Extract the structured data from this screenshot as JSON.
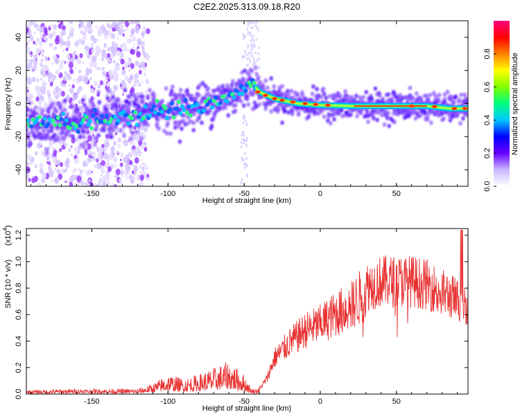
{
  "title": "C2E2.2025.313.09.18.R20",
  "chart_data": [
    {
      "type": "heatmap",
      "title": "C2E2.2025.313.09.18.R20",
      "xlabel": "Height of straight line (km)",
      "ylabel": "Frequency (Hz)",
      "xlim": [
        -193,
        97
      ],
      "ylim": [
        -50,
        50
      ],
      "xticks": [
        -150,
        -100,
        -50,
        0,
        50
      ],
      "yticks": [
        -40,
        -20,
        0,
        20,
        40
      ],
      "xtick_labels": [
        "-150",
        "-100",
        "-50",
        "0",
        "50"
      ],
      "ytick_labels": [
        "-40",
        "-20",
        "0",
        "20",
        "40"
      ],
      "ridge": {
        "x": [
          -190,
          -170,
          -150,
          -130,
          -110,
          -90,
          -70,
          -55,
          -45,
          -40,
          -30,
          -15,
          0,
          20,
          50,
          70,
          85,
          95
        ],
        "y": [
          -13,
          -11,
          -11,
          -8,
          -4,
          -3,
          1,
          6,
          13,
          7,
          3,
          0,
          -1,
          -1.5,
          -1.5,
          -1.5,
          -3,
          -3
        ]
      },
      "colorbar": {
        "label": "Normalized spectral amplitude",
        "range": [
          0,
          1
        ],
        "ticks": [
          "0.0",
          "0.2",
          "0.4",
          "0.6",
          "0.8"
        ],
        "tick_values": [
          0,
          0.2,
          0.4,
          0.6,
          0.8
        ],
        "colors": [
          "#ffffff",
          "#c8b8ff",
          "#6a00ff",
          "#0000ff",
          "#00c8ff",
          "#00ff80",
          "#80ff00",
          "#ffff00",
          "#ff8000",
          "#ff0000",
          "#ff0080"
        ]
      }
    },
    {
      "type": "line",
      "xlabel": "Height of straight line (km)",
      "ylabel": "SNR (10 * v/v)",
      "scale_label": "(x10",
      "scale_exponent": "4",
      "scale_suffix": ")",
      "xlim": [
        -193,
        97
      ],
      "ylim": [
        0,
        1.25
      ],
      "xticks": [
        -150,
        -100,
        -50,
        0,
        50
      ],
      "yticks": [
        0,
        0.2,
        0.4,
        0.6,
        0.8,
        1.0,
        1.2
      ],
      "xtick_labels": [
        "-150",
        "-100",
        "-50",
        "0",
        "50"
      ],
      "ytick_labels": [
        "0.0",
        "0.2",
        "0.4",
        "0.6",
        "0.8",
        "1.0",
        "1.2"
      ],
      "color": "#e83030",
      "envelope": {
        "x": [
          -193,
          -160,
          -120,
          -110,
          -100,
          -90,
          -80,
          -70,
          -60,
          -55,
          -50,
          -45,
          -40,
          -35,
          -30,
          -20,
          -10,
          0,
          10,
          20,
          30,
          40,
          50,
          60,
          70,
          80,
          90,
          97
        ],
        "y": [
          0.03,
          0.04,
          0.04,
          0.08,
          0.15,
          0.12,
          0.15,
          0.2,
          0.25,
          0.2,
          0.15,
          0.04,
          0.05,
          0.15,
          0.35,
          0.5,
          0.62,
          0.68,
          0.78,
          0.85,
          1.0,
          1.05,
          1.05,
          1.05,
          1.02,
          0.95,
          0.88,
          0.82
        ]
      }
    }
  ]
}
